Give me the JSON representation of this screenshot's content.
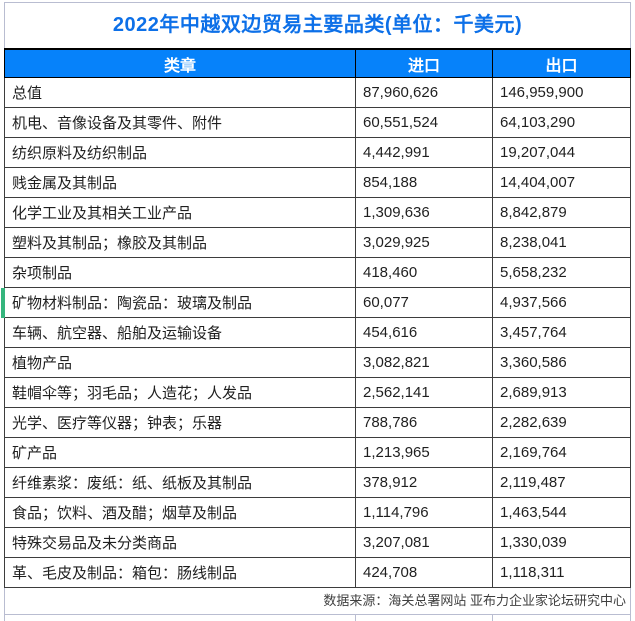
{
  "title": "2022年中越双边贸易主要品类(单位：千美元)",
  "table": {
    "headers": [
      "类章",
      "进口",
      "出口"
    ],
    "rows": [
      {
        "category": "总值",
        "import": "87,960,626",
        "export": "146,959,900"
      },
      {
        "category": "机电、音像设备及其零件、附件",
        "import": "60,551,524",
        "export": "64,103,290"
      },
      {
        "category": "纺织原料及纺织制品",
        "import": "4,442,991",
        "export": "19,207,044"
      },
      {
        "category": "贱金属及其制品",
        "import": "854,188",
        "export": "14,404,007"
      },
      {
        "category": "化学工业及其相关工业产品",
        "import": "1,309,636",
        "export": "8,842,879"
      },
      {
        "category": "塑料及其制品；橡胶及其制品",
        "import": "3,029,925",
        "export": "8,238,041"
      },
      {
        "category": "杂项制品",
        "import": "418,460",
        "export": "5,658,232"
      },
      {
        "category": "矿物材料制品：陶瓷品：玻璃及制品",
        "import": "60,077",
        "export": "4,937,566"
      },
      {
        "category": "车辆、航空器、船舶及运输设备",
        "import": "454,616",
        "export": "3,457,764"
      },
      {
        "category": "植物产品",
        "import": "3,082,821",
        "export": "3,360,586"
      },
      {
        "category": "鞋帽伞等；羽毛品；人造花；人发品",
        "import": "2,562,141",
        "export": "2,689,913"
      },
      {
        "category": "光学、医疗等仪器；钟表；乐器",
        "import": "788,786",
        "export": "2,282,639"
      },
      {
        "category": "矿产品",
        "import": "1,213,965",
        "export": "2,169,764"
      },
      {
        "category": "纤维素浆：废纸：纸、纸板及其制品",
        "import": "378,912",
        "export": "2,119,487"
      },
      {
        "category": "食品；饮料、酒及醋；烟草及制品",
        "import": "1,114,796",
        "export": "1,463,544"
      },
      {
        "category": "特殊交易品及未分类商品",
        "import": "3,207,081",
        "export": "1,330,039"
      },
      {
        "category": "革、毛皮及制品：箱包：肠线制品",
        "import": "424,708",
        "export": "1,118,311"
      }
    ],
    "green_marker_row_index": 7
  },
  "footer": {
    "source": "数据来源：海关总署网站 亚布力企业家论坛研究中心"
  },
  "colors": {
    "title_color": "#0d70e8",
    "header_bg": "#0682fa",
    "header_text": "#ffffff",
    "grid_dark": "#3d3d3d",
    "grid_light": "#b9bdd1",
    "green_marker": "#35b57d"
  },
  "chart_data": {
    "type": "table",
    "title": "2022年中越双边贸易主要品类(单位：千美元)",
    "unit": "千美元",
    "columns": [
      "类章",
      "进口",
      "出口"
    ],
    "rows": [
      [
        "总值",
        87960626,
        146959900
      ],
      [
        "机电、音像设备及其零件、附件",
        60551524,
        64103290
      ],
      [
        "纺织原料及纺织制品",
        4442991,
        19207044
      ],
      [
        "贱金属及其制品",
        854188,
        14404007
      ],
      [
        "化学工业及其相关工业产品",
        1309636,
        8842879
      ],
      [
        "塑料及其制品；橡胶及其制品",
        3029925,
        8238041
      ],
      [
        "杂项制品",
        418460,
        5658232
      ],
      [
        "矿物材料制品：陶瓷品：玻璃及制品",
        60077,
        4937566
      ],
      [
        "车辆、航空器、船舶及运输设备",
        454616,
        3457764
      ],
      [
        "植物产品",
        3082821,
        3360586
      ],
      [
        "鞋帽伞等；羽毛品；人造花；人发品",
        2562141,
        2689913
      ],
      [
        "光学、医疗等仪器；钟表；乐器",
        788786,
        2282639
      ],
      [
        "矿产品",
        1213965,
        2169764
      ],
      [
        "纤维素浆：废纸：纸、纸板及其制品",
        378912,
        2119487
      ],
      [
        "食品；饮料、酒及醋；烟草及制品",
        1114796,
        1463544
      ],
      [
        "特殊交易品及未分类商品",
        3207081,
        1330039
      ],
      [
        "革、毛皮及制品：箱包：肠线制品",
        424708,
        1118311
      ]
    ],
    "source_note": "数据来源：海关总署网站 亚布力企业家论坛研究中心"
  }
}
